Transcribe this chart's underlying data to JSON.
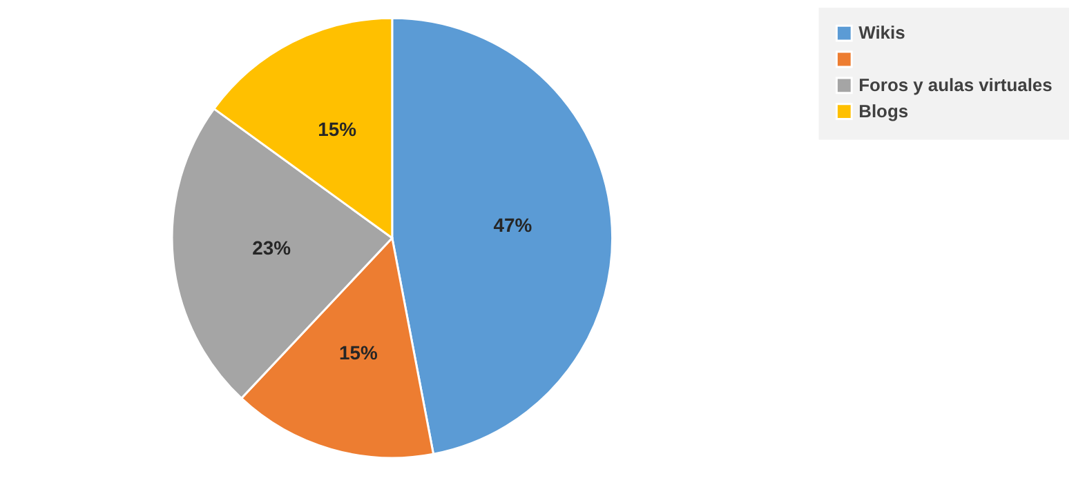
{
  "chart_data": {
    "type": "pie",
    "categories": [
      "Wikis",
      null,
      "Foros y aulas virtuales",
      "Blogs"
    ],
    "values": [
      47,
      15,
      23,
      15
    ],
    "value_labels": [
      "47%",
      "15%",
      "23%",
      "15%"
    ],
    "colors": [
      "#5b9bd5",
      "#ed7d31",
      "#a5a5a5",
      "#ffc000"
    ],
    "legend": "right"
  }
}
